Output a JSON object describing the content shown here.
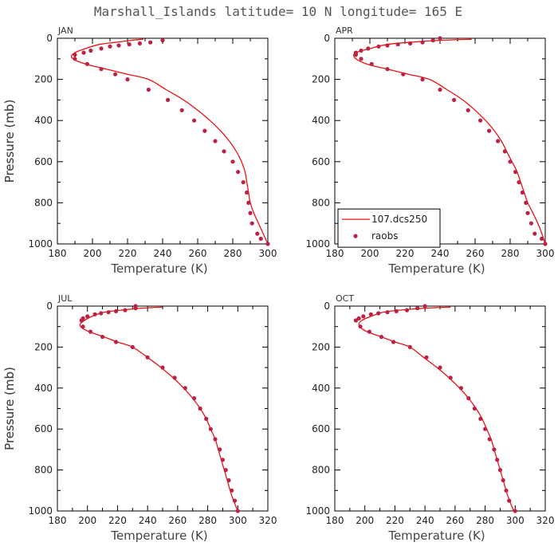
{
  "title": "Marshall_Islands  latitude= 10 N longitude= 165 E",
  "colors": {
    "model": "#ee1111",
    "obs": "#bb2244",
    "axis": "#000000"
  },
  "chart_data": [
    {
      "type": "line",
      "panel": "JAN",
      "xlabel": "Temperature (K)",
      "ylabel": "Pressure (mb)",
      "xlim": [
        180,
        300
      ],
      "ylim": [
        1000,
        0
      ],
      "grid": false,
      "xticks": [
        180,
        200,
        220,
        240,
        260,
        280,
        300
      ],
      "yticks": [
        0,
        200,
        400,
        600,
        800,
        1000
      ],
      "legend": null,
      "series": [
        {
          "name": "107.dcs250",
          "style": "line",
          "x": [
            229,
            222,
            213,
            204,
            196,
            190,
            188,
            191,
            198,
            208,
            220,
            232,
            242,
            252,
            260,
            267,
            273,
            278,
            282,
            285,
            287,
            288,
            289,
            290,
            292,
            296,
            300
          ],
          "y": [
            5,
            10,
            20,
            30,
            50,
            70,
            90,
            110,
            130,
            150,
            175,
            200,
            250,
            300,
            350,
            400,
            450,
            500,
            550,
            600,
            650,
            700,
            750,
            800,
            850,
            925,
            1000
          ]
        },
        {
          "name": "raobs",
          "style": "markers",
          "x": [
            240,
            233,
            227,
            221,
            215,
            210,
            205,
            199,
            195,
            190,
            190,
            197,
            205,
            213,
            220,
            232,
            243,
            251,
            258,
            264,
            270,
            275,
            280,
            283,
            286,
            288,
            289,
            290,
            291,
            294,
            296,
            300
          ],
          "y": [
            10,
            20,
            25,
            30,
            35,
            40,
            50,
            60,
            70,
            80,
            100,
            125,
            150,
            175,
            200,
            250,
            300,
            350,
            400,
            450,
            500,
            550,
            600,
            650,
            700,
            750,
            800,
            850,
            900,
            950,
            975,
            1000
          ]
        }
      ]
    },
    {
      "type": "line",
      "panel": "APR",
      "xlabel": "Temperature (K)",
      "ylabel": "Pressure (mb)",
      "xlim": [
        180,
        300
      ],
      "ylim": [
        1000,
        0
      ],
      "grid": false,
      "xticks": [
        180,
        200,
        220,
        240,
        260,
        280,
        300
      ],
      "yticks": [
        0,
        200,
        400,
        600,
        800,
        1000
      ],
      "legend": "lower-left",
      "series": [
        {
          "name": "107.dcs250",
          "style": "line",
          "x": [
            258,
            240,
            222,
            210,
            200,
            192,
            191,
            194,
            200,
            210,
            222,
            234,
            244,
            253,
            260,
            266,
            271,
            275,
            278,
            281,
            284,
            286,
            288,
            290,
            293,
            297,
            300
          ],
          "y": [
            5,
            10,
            20,
            30,
            50,
            70,
            90,
            110,
            130,
            150,
            175,
            200,
            250,
            300,
            350,
            400,
            450,
            500,
            550,
            600,
            650,
            700,
            750,
            800,
            850,
            925,
            1000
          ]
        },
        {
          "name": "raobs",
          "style": "markers",
          "x": [
            240,
            236,
            230,
            223,
            216,
            210,
            205,
            199,
            195,
            192,
            192,
            195,
            201,
            210,
            219,
            230,
            240,
            248,
            256,
            263,
            268,
            273,
            277,
            280,
            283,
            285,
            287,
            289,
            290,
            292,
            294,
            298,
            300
          ],
          "y": [
            0,
            10,
            20,
            25,
            30,
            35,
            40,
            50,
            60,
            70,
            80,
            100,
            125,
            150,
            175,
            200,
            250,
            300,
            350,
            400,
            450,
            500,
            550,
            600,
            650,
            700,
            750,
            800,
            850,
            900,
            950,
            975,
            1000
          ]
        }
      ]
    },
    {
      "type": "line",
      "panel": "JUL",
      "xlabel": "Temperature (K)",
      "ylabel": "Pressure (mb)",
      "xlim": [
        180,
        320
      ],
      "ylim": [
        1000,
        0
      ],
      "grid": false,
      "xticks": [
        180,
        200,
        220,
        240,
        260,
        280,
        300,
        320
      ],
      "yticks": [
        0,
        200,
        400,
        600,
        800,
        1000
      ],
      "legend": null,
      "series": [
        {
          "name": "107.dcs250",
          "style": "line",
          "x": [
            250,
            236,
            222,
            211,
            203,
            198,
            195,
            197,
            203,
            211,
            220,
            230,
            240,
            249,
            257,
            264,
            270,
            275,
            279,
            282,
            285,
            287,
            289,
            291,
            293,
            296,
            300
          ],
          "y": [
            5,
            10,
            20,
            30,
            50,
            70,
            90,
            110,
            130,
            150,
            175,
            200,
            250,
            300,
            350,
            400,
            450,
            500,
            550,
            600,
            650,
            700,
            750,
            800,
            850,
            925,
            1000
          ]
        },
        {
          "name": "raobs",
          "style": "markers",
          "x": [
            232,
            232,
            225,
            219,
            214,
            209,
            205,
            200,
            197,
            196,
            197,
            202,
            210,
            219,
            230,
            240,
            250,
            258,
            265,
            271,
            275,
            279,
            282,
            285,
            288,
            290,
            292,
            294,
            296,
            298,
            300
          ],
          "y": [
            0,
            10,
            20,
            25,
            30,
            35,
            40,
            50,
            60,
            70,
            100,
            125,
            150,
            175,
            200,
            250,
            300,
            350,
            400,
            450,
            500,
            550,
            600,
            650,
            700,
            750,
            800,
            850,
            900,
            950,
            1000
          ]
        }
      ]
    },
    {
      "type": "line",
      "panel": "OCT",
      "xlabel": "Temperature (K)",
      "ylabel": "Pressure (mb)",
      "xlim": [
        180,
        320
      ],
      "ylim": [
        1000,
        0
      ],
      "grid": false,
      "xticks": [
        180,
        200,
        220,
        240,
        260,
        280,
        300,
        320
      ],
      "yticks": [
        0,
        200,
        400,
        600,
        800,
        1000
      ],
      "legend": null,
      "series": [
        {
          "name": "107.dcs250",
          "style": "line",
          "x": [
            257,
            240,
            223,
            212,
            204,
            198,
            196,
            198,
            203,
            211,
            220,
            230,
            239,
            248,
            256,
            263,
            269,
            274,
            278,
            281,
            284,
            286,
            288,
            290,
            292,
            295,
            299
          ],
          "y": [
            5,
            10,
            20,
            30,
            50,
            70,
            90,
            110,
            130,
            150,
            175,
            200,
            250,
            300,
            350,
            400,
            450,
            500,
            550,
            600,
            650,
            700,
            750,
            800,
            850,
            925,
            1000
          ]
        },
        {
          "name": "raobs",
          "style": "markers",
          "x": [
            240,
            235,
            228,
            221,
            215,
            209,
            204,
            199,
            196,
            194,
            197,
            203,
            211,
            219,
            230,
            241,
            250,
            257,
            264,
            269,
            273,
            277,
            280,
            283,
            286,
            288,
            290,
            292,
            294,
            296,
            300
          ],
          "y": [
            0,
            10,
            20,
            25,
            30,
            35,
            40,
            50,
            60,
            70,
            100,
            125,
            150,
            175,
            200,
            250,
            300,
            350,
            400,
            450,
            500,
            550,
            600,
            650,
            700,
            750,
            800,
            850,
            900,
            950,
            1000
          ]
        }
      ]
    }
  ]
}
